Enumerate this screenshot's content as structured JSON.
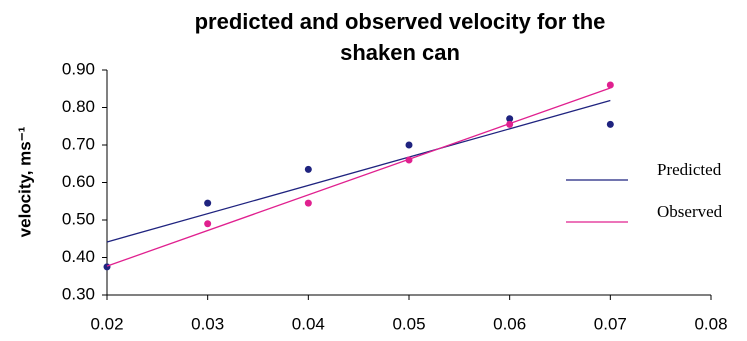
{
  "chart_data": {
    "type": "scatter",
    "title": "predicted and observed velocity for the shaken can",
    "y_label": "velocity, ms⁻¹",
    "x": [
      0.02,
      0.03,
      0.04,
      0.05,
      0.06,
      0.07
    ],
    "series": [
      {
        "name": "Predicted",
        "color": "#1f237f",
        "values": [
          0.375,
          0.545,
          0.635,
          0.7,
          0.77,
          0.755
        ]
      },
      {
        "name": "Observed",
        "color": "#e0208f",
        "values": [
          null,
          0.49,
          0.545,
          0.66,
          0.755,
          0.86
        ]
      }
    ],
    "xlim": [
      0.02,
      0.08
    ],
    "xticks": [
      0.02,
      0.03,
      0.04,
      0.05,
      0.06,
      0.07,
      0.08
    ],
    "ylim": [
      0.3,
      0.9
    ],
    "yticks": [
      {
        "value": 0.3,
        "label": "0.30"
      },
      {
        "value": 0.4,
        "label": "0.40"
      },
      {
        "value": 0.5,
        "label": "0.50"
      },
      {
        "value": 0.6,
        "label": "0.60"
      },
      {
        "value": 0.7,
        "label": "0.70"
      },
      {
        "value": 0.8,
        "label": "0.80"
      },
      {
        "value": 0.9,
        "label": "0.90"
      }
    ],
    "trendline": "linear",
    "legend": "right"
  }
}
